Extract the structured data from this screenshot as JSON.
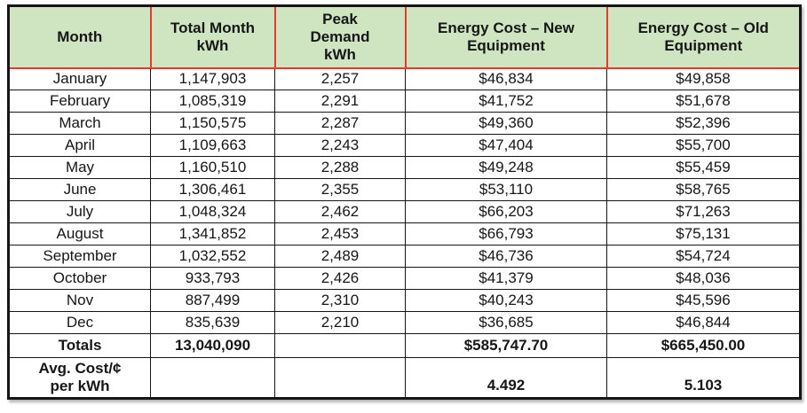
{
  "theme": {
    "header_bg": "#cfe5c2",
    "header_border": "#e8392b",
    "grid": "#151515",
    "text": "#161616",
    "page_bg": "#ffffff"
  },
  "table": {
    "columns": [
      "Month",
      "Total Month\nkWh",
      "Peak\nDemand\nkWh",
      "Energy Cost – New\nEquipment",
      "Energy Cost – Old\nEquipment"
    ],
    "rows": [
      [
        "January",
        "1,147,903",
        "2,257",
        "$46,834",
        "$49,858"
      ],
      [
        "February",
        "1,085,319",
        "2,291",
        "$41,752",
        "$51,678"
      ],
      [
        "March",
        "1,150,575",
        "2,287",
        "$49,360",
        "$52,396"
      ],
      [
        "April",
        "1,109,663",
        "2,243",
        "$47,404",
        "$55,700"
      ],
      [
        "May",
        "1,160,510",
        "2,288",
        "$49,248",
        "$55,459"
      ],
      [
        "June",
        "1,306,461",
        "2,355",
        "$53,110",
        "$58,765"
      ],
      [
        "July",
        "1,048,324",
        "2,462",
        "$66,203",
        "$71,263"
      ],
      [
        "August",
        "1,341,852",
        "2,453",
        "$66,793",
        "$75,131"
      ],
      [
        "September",
        "1,032,552",
        "2,489",
        "$46,736",
        "$54,724"
      ],
      [
        "October",
        "933,793",
        "2,426",
        "$41,379",
        "$48,036"
      ],
      [
        "Nov",
        "887,499",
        "2,310",
        "$40,243",
        "$45,596"
      ],
      [
        "Dec",
        "835,639",
        "2,210",
        "$36,685",
        "$46,844"
      ]
    ],
    "totals": {
      "label": "Totals",
      "total_kwh": "13,040,090",
      "peak_kwh": "",
      "new_cost": "$585,747.70",
      "old_cost": "$665,450.00"
    },
    "avg": {
      "label": "Avg. Cost/¢\nper kWh",
      "total_kwh": "",
      "peak_kwh": "",
      "new_cost": "4.492",
      "old_cost": "5.103"
    }
  },
  "chart_data": {
    "type": "table",
    "title": "Monthly energy usage and cost comparison, new vs old equipment",
    "columns": [
      "Month",
      "Total Month kWh",
      "Peak Demand kWh",
      "Energy Cost – New Equipment",
      "Energy Cost – Old Equipment"
    ],
    "rows": [
      {
        "month": "January",
        "total_month_kwh": 1147903,
        "peak_demand_kwh": 2257,
        "energy_cost_new": 46834,
        "energy_cost_old": 49858
      },
      {
        "month": "February",
        "total_month_kwh": 1085319,
        "peak_demand_kwh": 2291,
        "energy_cost_new": 41752,
        "energy_cost_old": 51678
      },
      {
        "month": "March",
        "total_month_kwh": 1150575,
        "peak_demand_kwh": 2287,
        "energy_cost_new": 49360,
        "energy_cost_old": 52396
      },
      {
        "month": "April",
        "total_month_kwh": 1109663,
        "peak_demand_kwh": 2243,
        "energy_cost_new": 47404,
        "energy_cost_old": 55700
      },
      {
        "month": "May",
        "total_month_kwh": 1160510,
        "peak_demand_kwh": 2288,
        "energy_cost_new": 49248,
        "energy_cost_old": 55459
      },
      {
        "month": "June",
        "total_month_kwh": 1306461,
        "peak_demand_kwh": 2355,
        "energy_cost_new": 53110,
        "energy_cost_old": 58765
      },
      {
        "month": "July",
        "total_month_kwh": 1048324,
        "peak_demand_kwh": 2462,
        "energy_cost_new": 66203,
        "energy_cost_old": 71263
      },
      {
        "month": "August",
        "total_month_kwh": 1341852,
        "peak_demand_kwh": 2453,
        "energy_cost_new": 66793,
        "energy_cost_old": 75131
      },
      {
        "month": "September",
        "total_month_kwh": 1032552,
        "peak_demand_kwh": 2489,
        "energy_cost_new": 46736,
        "energy_cost_old": 54724
      },
      {
        "month": "October",
        "total_month_kwh": 933793,
        "peak_demand_kwh": 2426,
        "energy_cost_new": 41379,
        "energy_cost_old": 48036
      },
      {
        "month": "Nov",
        "total_month_kwh": 887499,
        "peak_demand_kwh": 2310,
        "energy_cost_new": 40243,
        "energy_cost_old": 45596
      },
      {
        "month": "Dec",
        "total_month_kwh": 835639,
        "peak_demand_kwh": 2210,
        "energy_cost_new": 36685,
        "energy_cost_old": 46844
      }
    ],
    "totals": {
      "total_month_kwh": 13040090,
      "energy_cost_new": 585747.7,
      "energy_cost_old": 665450.0
    },
    "avg_cost_cents_per_kwh": {
      "new_equipment": 4.492,
      "old_equipment": 5.103
    }
  }
}
